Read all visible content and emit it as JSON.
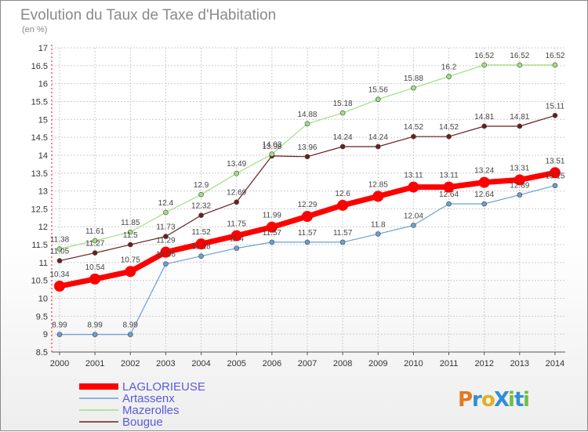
{
  "colors": {
    "laglorieuse": "#ff0000",
    "artassenx": "#6a9fd4",
    "mazerolles": "#a0e080",
    "bougue": "#6b1e1e",
    "grid": "#cccccc",
    "legend_text": "#5a5ad8"
  },
  "logo": {
    "text": "ProXiti",
    "letters": [
      "P",
      "r",
      "o",
      "X",
      "i",
      "t",
      "i"
    ],
    "colors": [
      "#e07a1f",
      "#2f8fd6",
      "#e0b01f",
      "#2f8fd6",
      "#6fbf3f",
      "#2f8fd6",
      "#6fbf3f"
    ]
  },
  "chart_data": {
    "type": "line",
    "title": "Evolution du Taux de Taxe d'Habitation",
    "subtitle": "(en %)",
    "x": [
      "2000",
      "2001",
      "2002",
      "2003",
      "2004",
      "2005",
      "2006",
      "2007",
      "2008",
      "2009",
      "2010",
      "2011",
      "2012",
      "2013",
      "2014"
    ],
    "ylim": [
      8.5,
      17
    ],
    "yticks": [
      "8.5",
      "9",
      "9.5",
      "10",
      "10.5",
      "11",
      "11.5",
      "12",
      "12.5",
      "13",
      "13.5",
      "14",
      "14.5",
      "15",
      "15.5",
      "16",
      "16.5",
      "17"
    ],
    "grid": true,
    "legend_position": "bottom-left",
    "series": [
      {
        "name": "LAGLORIEUSE",
        "key": "laglorieuse",
        "values": [
          10.34,
          10.54,
          10.75,
          11.29,
          11.52,
          11.75,
          11.99,
          12.29,
          12.6,
          12.85,
          13.11,
          13.11,
          13.24,
          13.31,
          13.51
        ],
        "labels": [
          "10.34",
          "10.54",
          "10.75",
          "11.29",
          "11.52",
          "11.75",
          "11.99",
          "12.29",
          "12.6",
          "12.85",
          "13.11",
          "13.11",
          "13.24",
          "13.31",
          "13.51"
        ]
      },
      {
        "name": "Artassenx",
        "key": "artassenx",
        "values": [
          8.99,
          8.99,
          8.99,
          10.96,
          11.18,
          11.4,
          11.57,
          11.57,
          11.57,
          11.8,
          12.04,
          12.64,
          12.64,
          12.89,
          13.15
        ],
        "labels": [
          "8.99",
          "8.99",
          "8.99",
          "10.96",
          "11.18",
          "11.4",
          "11.57",
          "11.57",
          "11.57",
          "11.8",
          "12.04",
          "12.64",
          "12.64",
          "12.89",
          "13.15"
        ]
      },
      {
        "name": "Mazerolles",
        "key": "mazerolles",
        "values": [
          11.38,
          11.61,
          11.85,
          12.4,
          12.9,
          13.49,
          14.03,
          14.88,
          15.18,
          15.56,
          15.88,
          16.2,
          16.52,
          16.52,
          16.52
        ],
        "labels": [
          "11.38",
          "11.61",
          "11.85",
          "12.4",
          "12.9",
          "13.49",
          "14.03",
          "14.88",
          "15.18",
          "15.56",
          "15.88",
          "16.2",
          "16.52",
          "16.52",
          "16.52"
        ]
      },
      {
        "name": "Bougue",
        "key": "bougue",
        "values": [
          11.05,
          11.27,
          11.5,
          11.73,
          12.32,
          12.69,
          13.98,
          13.96,
          14.24,
          14.24,
          14.52,
          14.52,
          14.81,
          14.81,
          15.11
        ],
        "labels": [
          "11.05",
          "11.27",
          "11.5",
          "11.73",
          "12.32",
          "12.69",
          "13.98",
          "13.96",
          "14.24",
          "14.24",
          "14.52",
          "14.52",
          "14.81",
          "14.81",
          "15.11"
        ]
      }
    ]
  }
}
